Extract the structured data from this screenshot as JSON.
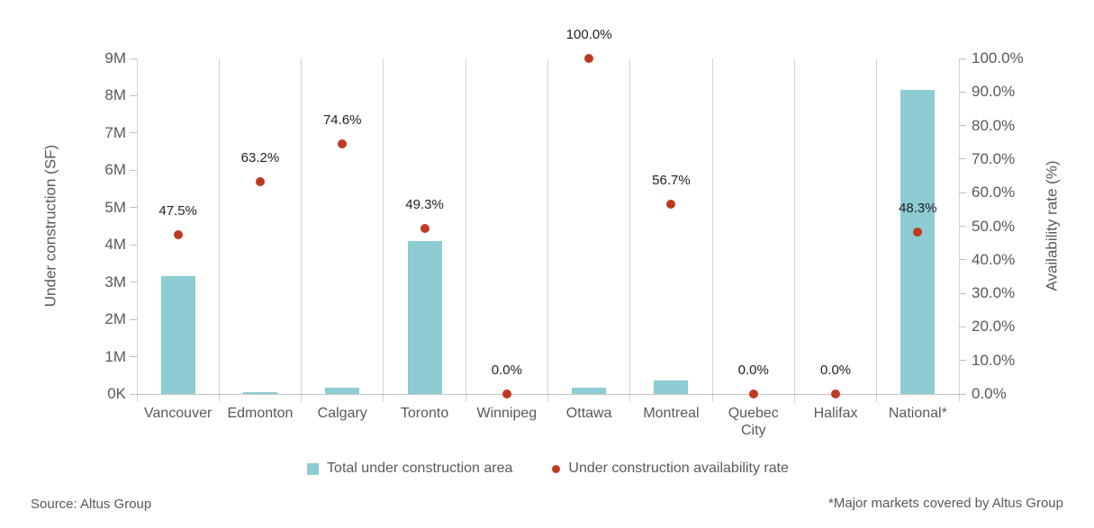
{
  "chart_data": {
    "type": "combo-bar-scatter",
    "title": "",
    "categories": [
      "Vancouver",
      "Edmonton",
      "Calgary",
      "Toronto",
      "Winnipeg",
      "Ottawa",
      "Montreal",
      "Quebec City",
      "Halifax",
      "National*"
    ],
    "series": [
      {
        "name": "Total under construction area",
        "type": "bar",
        "axis": "left",
        "unit": "SF",
        "color": "#8dccd3",
        "values": [
          3150000,
          50000,
          170000,
          4100000,
          0,
          170000,
          360000,
          0,
          0,
          8150000
        ]
      },
      {
        "name": "Under construction availability rate",
        "type": "point",
        "axis": "right",
        "unit": "%",
        "color": "#bf3a21",
        "values": [
          47.5,
          63.2,
          74.6,
          49.3,
          0.0,
          100.0,
          56.7,
          0.0,
          0.0,
          48.3
        ],
        "labels": [
          "47.5%",
          "63.2%",
          "74.6%",
          "49.3%",
          "0.0%",
          "100.0%",
          "56.7%",
          "0.0%",
          "0.0%",
          "48.3%"
        ]
      }
    ],
    "left_axis": {
      "title": "Under construction (SF)",
      "range": [
        0,
        9000000
      ],
      "ticks": [
        "0K",
        "1M",
        "2M",
        "3M",
        "4M",
        "5M",
        "6M",
        "7M",
        "8M",
        "9M"
      ]
    },
    "right_axis": {
      "title": "Availability rate (%)",
      "range": [
        0,
        100
      ],
      "ticks": [
        "0.0%",
        "10.0%",
        "20.0%",
        "30.0%",
        "40.0%",
        "50.0%",
        "60.0%",
        "70.0%",
        "80.0%",
        "90.0%",
        "100.0%"
      ]
    },
    "legend_position": "bottom",
    "grid": "vertical-category-separators-only"
  },
  "footer": {
    "source": "Source: Altus Group",
    "note": "*Major markets covered by Altus Group"
  },
  "colors": {
    "bar": "#8dccd3",
    "dot": "#bf3a21",
    "axis_text": "#595959",
    "grid_line": "#d4d4d4",
    "baseline": "#c4c4c4",
    "value_label_text": "#1f1f1f"
  }
}
